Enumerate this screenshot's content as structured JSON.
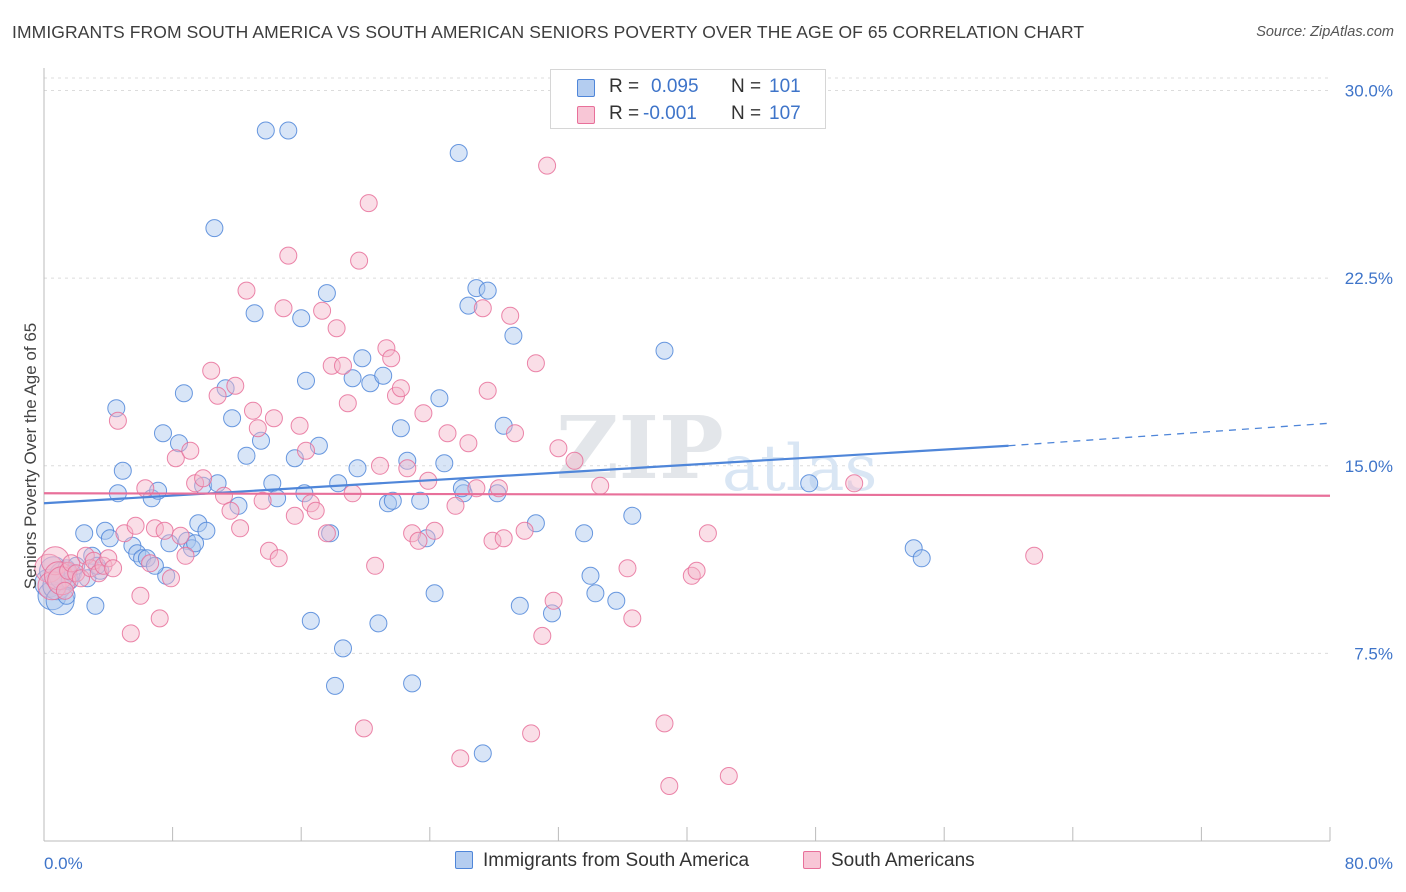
{
  "title": "IMMIGRANTS FROM SOUTH AMERICA VS SOUTH AMERICAN SENIORS POVERTY OVER THE AGE OF 65 CORRELATION CHART",
  "source": "Source: ZipAtlas.com",
  "watermark": {
    "zip": "ZIP",
    "atlas": "atlas"
  },
  "legend": {
    "series1": {
      "r_label": "R =",
      "r_value": "0.095",
      "n_label": "N =",
      "n_value": "101"
    },
    "series2": {
      "r_label": "R =",
      "r_value": "-0.001",
      "n_label": "N =",
      "n_value": "107"
    }
  },
  "colors": {
    "blue": "#4f86d9",
    "pink": "#e8709a",
    "blue_fill": "#a9c6ee",
    "pink_fill": "#f4b6c9",
    "tick_label": "#3e74c9"
  },
  "chart_data": {
    "type": "scatter",
    "ylabel": "Seniors Poverty Over the Age of 65",
    "xlim": [
      0,
      80
    ],
    "ylim": [
      0,
      30.5
    ],
    "x_tick_labels": [
      "0.0%",
      "80.0%"
    ],
    "y_ticks": [
      7.5,
      15.0,
      22.5,
      30.0
    ],
    "y_tick_labels": [
      "7.5%",
      "15.0%",
      "22.5%",
      "30.0%"
    ],
    "grid": "horizontal dashed",
    "series": [
      {
        "name": "Immigrants from South America",
        "color": "#4f86d9",
        "trend": {
          "x0": 0,
          "y0": 13.5,
          "x1": 60,
          "y1": 15.8,
          "dash_to_x": 80,
          "dash_to_y": 16.7
        },
        "points": [
          [
            0.3,
            10.3
          ],
          [
            0.5,
            9.8
          ],
          [
            0.6,
            10.8
          ],
          [
            0.8,
            10.2
          ],
          [
            1.0,
            9.6
          ],
          [
            1.2,
            10.6
          ],
          [
            1.4,
            10.9
          ],
          [
            1.6,
            10.4
          ],
          [
            1.8,
            10.7
          ],
          [
            2.0,
            11.0
          ],
          [
            2.5,
            12.3
          ],
          [
            2.7,
            10.5
          ],
          [
            3.0,
            11.4
          ],
          [
            3.2,
            9.4
          ],
          [
            3.5,
            10.8
          ],
          [
            3.8,
            12.4
          ],
          [
            4.1,
            12.1
          ],
          [
            4.5,
            17.3
          ],
          [
            4.6,
            13.9
          ],
          [
            4.9,
            14.8
          ],
          [
            5.5,
            11.8
          ],
          [
            5.8,
            11.5
          ],
          [
            6.1,
            11.3
          ],
          [
            6.4,
            11.3
          ],
          [
            6.7,
            13.7
          ],
          [
            7.1,
            14.0
          ],
          [
            7.4,
            16.3
          ],
          [
            7.6,
            10.6
          ],
          [
            7.8,
            11.9
          ],
          [
            8.4,
            15.9
          ],
          [
            8.7,
            17.9
          ],
          [
            8.9,
            12.0
          ],
          [
            9.2,
            11.7
          ],
          [
            9.6,
            12.7
          ],
          [
            9.9,
            14.2
          ],
          [
            10.1,
            12.4
          ],
          [
            10.6,
            24.5
          ],
          [
            10.8,
            14.3
          ],
          [
            11.3,
            18.1
          ],
          [
            11.7,
            16.9
          ],
          [
            12.1,
            13.4
          ],
          [
            12.6,
            15.4
          ],
          [
            13.1,
            21.1
          ],
          [
            13.5,
            16.0
          ],
          [
            13.8,
            28.4
          ],
          [
            14.2,
            14.3
          ],
          [
            14.5,
            13.7
          ],
          [
            15.2,
            28.4
          ],
          [
            15.6,
            15.3
          ],
          [
            16.0,
            20.9
          ],
          [
            16.3,
            18.4
          ],
          [
            16.6,
            8.8
          ],
          [
            17.1,
            15.8
          ],
          [
            17.6,
            21.9
          ],
          [
            17.8,
            12.3
          ],
          [
            18.1,
            6.2
          ],
          [
            18.3,
            14.3
          ],
          [
            18.6,
            7.7
          ],
          [
            19.2,
            18.5
          ],
          [
            19.5,
            14.9
          ],
          [
            19.8,
            19.3
          ],
          [
            20.3,
            18.3
          ],
          [
            20.8,
            8.7
          ],
          [
            21.1,
            18.6
          ],
          [
            21.4,
            13.5
          ],
          [
            21.7,
            13.6
          ],
          [
            22.2,
            16.5
          ],
          [
            22.6,
            15.2
          ],
          [
            22.9,
            6.3
          ],
          [
            23.4,
            13.6
          ],
          [
            23.8,
            12.1
          ],
          [
            24.3,
            9.9
          ],
          [
            24.6,
            17.7
          ],
          [
            24.9,
            15.1
          ],
          [
            25.8,
            27.5
          ],
          [
            26.1,
            13.9
          ],
          [
            26.4,
            21.4
          ],
          [
            26.9,
            22.1
          ],
          [
            27.6,
            22.0
          ],
          [
            27.3,
            3.5
          ],
          [
            28.2,
            13.9
          ],
          [
            28.6,
            16.6
          ],
          [
            29.2,
            20.2
          ],
          [
            29.6,
            9.4
          ],
          [
            30.6,
            12.7
          ],
          [
            31.6,
            9.1
          ],
          [
            33.6,
            12.3
          ],
          [
            34.0,
            10.6
          ],
          [
            34.3,
            9.9
          ],
          [
            35.6,
            9.6
          ],
          [
            36.6,
            13.0
          ],
          [
            38.6,
            19.6
          ],
          [
            47.6,
            14.3
          ],
          [
            54.1,
            11.7
          ],
          [
            54.6,
            11.3
          ],
          [
            1.4,
            9.8
          ],
          [
            3.3,
            11.0
          ],
          [
            6.9,
            11.0
          ],
          [
            9.4,
            11.9
          ],
          [
            16.2,
            13.9
          ],
          [
            26.0,
            14.1
          ]
        ]
      },
      {
        "name": "South Americans",
        "color": "#e8709a",
        "trend": {
          "x0": 0,
          "y0": 13.9,
          "x1": 80,
          "y1": 13.8
        },
        "points": [
          [
            0.3,
            10.9
          ],
          [
            0.5,
            10.2
          ],
          [
            0.7,
            11.2
          ],
          [
            0.9,
            10.6
          ],
          [
            1.1,
            10.4
          ],
          [
            1.3,
            10.0
          ],
          [
            1.5,
            10.8
          ],
          [
            1.7,
            11.1
          ],
          [
            2.0,
            10.7
          ],
          [
            2.3,
            10.5
          ],
          [
            2.6,
            11.4
          ],
          [
            2.9,
            10.9
          ],
          [
            3.1,
            11.2
          ],
          [
            3.4,
            10.7
          ],
          [
            3.7,
            11.0
          ],
          [
            4.0,
            11.3
          ],
          [
            4.3,
            10.9
          ],
          [
            4.6,
            16.8
          ],
          [
            5.0,
            12.3
          ],
          [
            5.4,
            8.3
          ],
          [
            5.7,
            12.6
          ],
          [
            6.0,
            9.8
          ],
          [
            6.3,
            14.1
          ],
          [
            6.6,
            11.1
          ],
          [
            6.9,
            12.5
          ],
          [
            7.2,
            8.9
          ],
          [
            7.5,
            12.4
          ],
          [
            7.9,
            10.5
          ],
          [
            8.2,
            15.3
          ],
          [
            8.5,
            12.2
          ],
          [
            8.8,
            11.4
          ],
          [
            9.1,
            15.6
          ],
          [
            9.4,
            14.3
          ],
          [
            9.9,
            14.5
          ],
          [
            10.4,
            18.8
          ],
          [
            10.8,
            17.8
          ],
          [
            11.2,
            13.8
          ],
          [
            11.6,
            13.2
          ],
          [
            11.9,
            18.2
          ],
          [
            12.2,
            12.5
          ],
          [
            12.6,
            22.0
          ],
          [
            13.0,
            17.2
          ],
          [
            13.3,
            16.5
          ],
          [
            13.6,
            13.6
          ],
          [
            14.0,
            11.6
          ],
          [
            14.3,
            16.9
          ],
          [
            14.6,
            11.3
          ],
          [
            14.9,
            21.3
          ],
          [
            15.2,
            23.4
          ],
          [
            15.6,
            13.0
          ],
          [
            15.9,
            16.6
          ],
          [
            16.3,
            15.6
          ],
          [
            16.6,
            13.5
          ],
          [
            16.9,
            13.2
          ],
          [
            17.3,
            21.2
          ],
          [
            17.6,
            12.3
          ],
          [
            17.9,
            19.0
          ],
          [
            18.2,
            20.5
          ],
          [
            18.6,
            19.0
          ],
          [
            18.9,
            17.5
          ],
          [
            19.2,
            13.9
          ],
          [
            19.6,
            23.2
          ],
          [
            19.9,
            4.5
          ],
          [
            20.2,
            25.5
          ],
          [
            20.6,
            11.0
          ],
          [
            20.9,
            15.0
          ],
          [
            21.3,
            19.7
          ],
          [
            21.6,
            19.3
          ],
          [
            21.9,
            17.8
          ],
          [
            22.2,
            18.1
          ],
          [
            22.6,
            14.9
          ],
          [
            22.9,
            12.3
          ],
          [
            23.3,
            12.0
          ],
          [
            23.6,
            17.1
          ],
          [
            23.9,
            14.4
          ],
          [
            24.3,
            12.4
          ],
          [
            25.1,
            16.3
          ],
          [
            25.6,
            13.4
          ],
          [
            25.9,
            3.3
          ],
          [
            26.4,
            15.9
          ],
          [
            26.9,
            14.1
          ],
          [
            27.3,
            21.3
          ],
          [
            27.6,
            18.0
          ],
          [
            27.9,
            12.0
          ],
          [
            28.3,
            14.1
          ],
          [
            28.6,
            12.1
          ],
          [
            29.0,
            21.0
          ],
          [
            29.3,
            16.3
          ],
          [
            29.9,
            12.4
          ],
          [
            30.3,
            4.3
          ],
          [
            30.6,
            19.1
          ],
          [
            31.0,
            8.2
          ],
          [
            31.3,
            27.0
          ],
          [
            31.7,
            9.6
          ],
          [
            32.0,
            15.7
          ],
          [
            33.0,
            15.2
          ],
          [
            34.6,
            14.2
          ],
          [
            36.3,
            10.9
          ],
          [
            36.6,
            8.9
          ],
          [
            38.6,
            4.7
          ],
          [
            38.9,
            2.2
          ],
          [
            40.3,
            10.6
          ],
          [
            40.6,
            10.8
          ],
          [
            41.3,
            12.3
          ],
          [
            42.6,
            2.6
          ],
          [
            50.4,
            14.3
          ],
          [
            61.6,
            11.4
          ]
        ]
      }
    ]
  }
}
